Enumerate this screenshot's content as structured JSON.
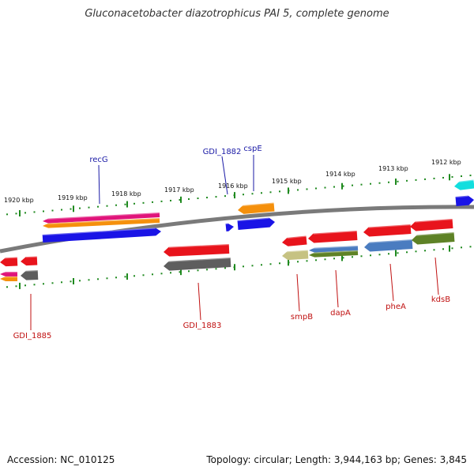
{
  "title": "Gluconacetobacter diazotrophicus PAI 5, complete genome",
  "footer": {
    "accession": "Accession: NC_010125",
    "stats": "Topology: circular; Length: 3,944,163 bp; Genes: 3,845"
  },
  "colors": {
    "backbone": "#7a7a7a",
    "tick": "#1f8a1f",
    "forward_label": "#1a1aa6",
    "reverse_label": "#c01010",
    "red": "#e8141c",
    "blue": "#1a14e6",
    "orange": "#f5900c",
    "magenta": "#e0147a",
    "gray": "#5e5e5e",
    "khaki": "#c6c282",
    "steelblue": "#4a7cc0",
    "olive": "#5e8226",
    "cyan": "#12dede"
  },
  "kbp_ticks": [
    "1920 kbp",
    "1919 kbp",
    "1918 kbp",
    "1917 kbp",
    "1916 kbp",
    "1915 kbp",
    "1914 kbp",
    "1913 kbp",
    "1912 kbp"
  ],
  "gene_labels": {
    "forward": [
      "recG",
      "GDI_1882",
      "cspE"
    ],
    "reverse": [
      "GDI_1885",
      "GDI_1883",
      "smpB",
      "dapA",
      "pheA",
      "kdsB"
    ]
  },
  "feature_colors": {
    "forward": [
      "magenta",
      "orange",
      "blue",
      "blue",
      "orange",
      "blue",
      "cyan",
      "blue"
    ],
    "reverse": [
      "red",
      "red",
      "magenta",
      "orange",
      "gray",
      "red",
      "gray",
      "red",
      "khaki",
      "red",
      "steelblue",
      "olive",
      "red",
      "steelblue",
      "red",
      "olive"
    ]
  }
}
